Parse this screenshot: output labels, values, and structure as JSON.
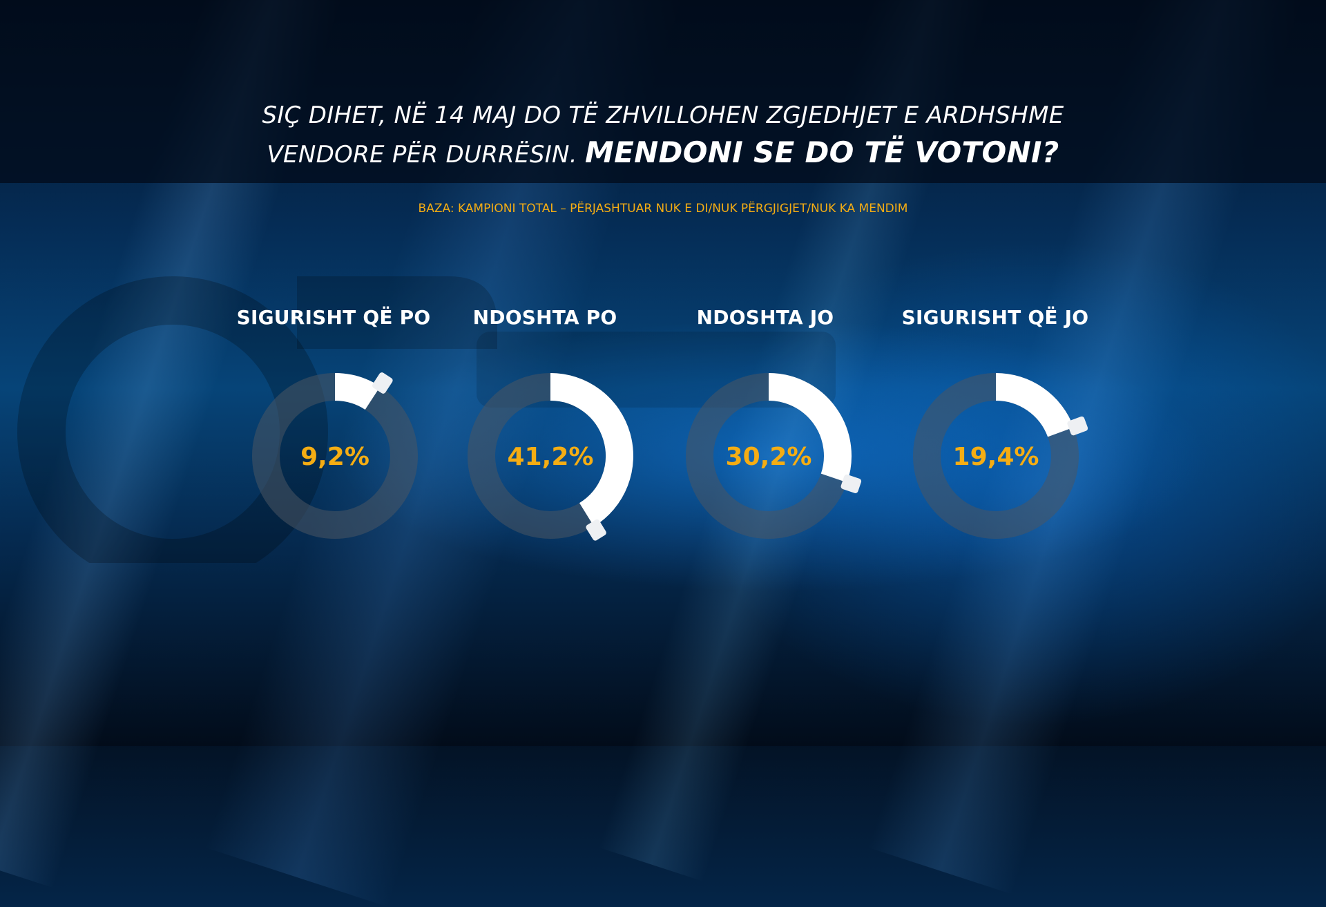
{
  "title": {
    "line1": "SIÇ DIHET, NË 14 MAJ DO TË ZHVILLOHEN ZGJEDHJET E ARDHSHME",
    "line2_regular": "VENDORE PËR DURRËSIN.",
    "line2_bold": "MENDONI SE DO TË VOTONI?"
  },
  "subtitle": "BAZA: KAMPIONI TOTAL – PËRJASHTUAR NUK E DI/NUK PËRGJIGJET/NUK KA MENDIM",
  "colors": {
    "value_text": "#f5ad13",
    "arc": "#ffffff",
    "track": "#4b5563"
  },
  "chart_data": {
    "type": "pie",
    "title": "SIÇ DIHET, NË 14 MAJ DO TË ZHVILLOHEN ZGJEDHJET E ARDHSHME VENDORE PËR DURRËSIN. MENDONI SE DO TË VOTONI?",
    "subtitle": "BAZA: KAMPIONI TOTAL – PËRJASHTUAR NUK E DI/NUK PËRGJIGJET/NUK KA MENDIM",
    "unit": "%",
    "categories": [
      "SIGURISHT QË PO",
      "NDOSHTA PO",
      "NDOSHTA JO",
      "SIGURISHT QË JO"
    ],
    "values": [
      9.2,
      41.2,
      30.2,
      19.4
    ],
    "value_labels": [
      "9,2%",
      "41,2%",
      "30,2%",
      "19,4%"
    ]
  }
}
